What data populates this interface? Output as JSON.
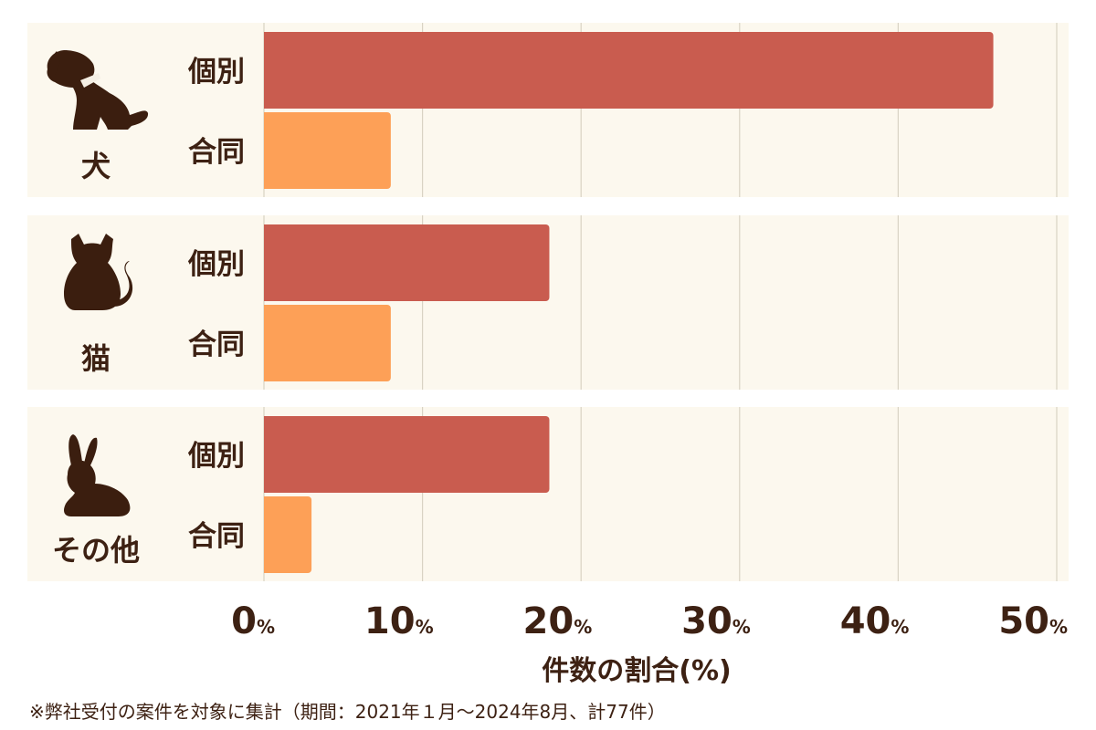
{
  "chart_data": {
    "type": "bar",
    "orientation": "horizontal",
    "groups": [
      {
        "name": "犬",
        "icon": "dog-icon",
        "bars": [
          {
            "label": "個別",
            "value": 46
          },
          {
            "label": "合同",
            "value": 8
          }
        ]
      },
      {
        "name": "猫",
        "icon": "cat-icon",
        "bars": [
          {
            "label": "個別",
            "value": 18
          },
          {
            "label": "合同",
            "value": 8
          }
        ]
      },
      {
        "name": "その他",
        "icon": "rabbit-icon",
        "bars": [
          {
            "label": "個別",
            "value": 18
          },
          {
            "label": "合同",
            "value": 3
          }
        ]
      }
    ],
    "xticks": [
      "0",
      "10",
      "20",
      "30",
      "40",
      "50"
    ],
    "xtick_unit": "%",
    "xlim": [
      0,
      50
    ],
    "xlabel": "件数の割合(%)",
    "grid": true
  },
  "footnote": "※弊社受付の案件を対象に集計（期間：2021年１月～2024年8月、計77件）",
  "colors": {
    "kobetsu": "#c95c4f",
    "goudou": "#fda057",
    "panel": "#fcf8ee",
    "grid": "#d9d3c4",
    "text": "#3d2113",
    "icon": "#3b1e0f"
  }
}
